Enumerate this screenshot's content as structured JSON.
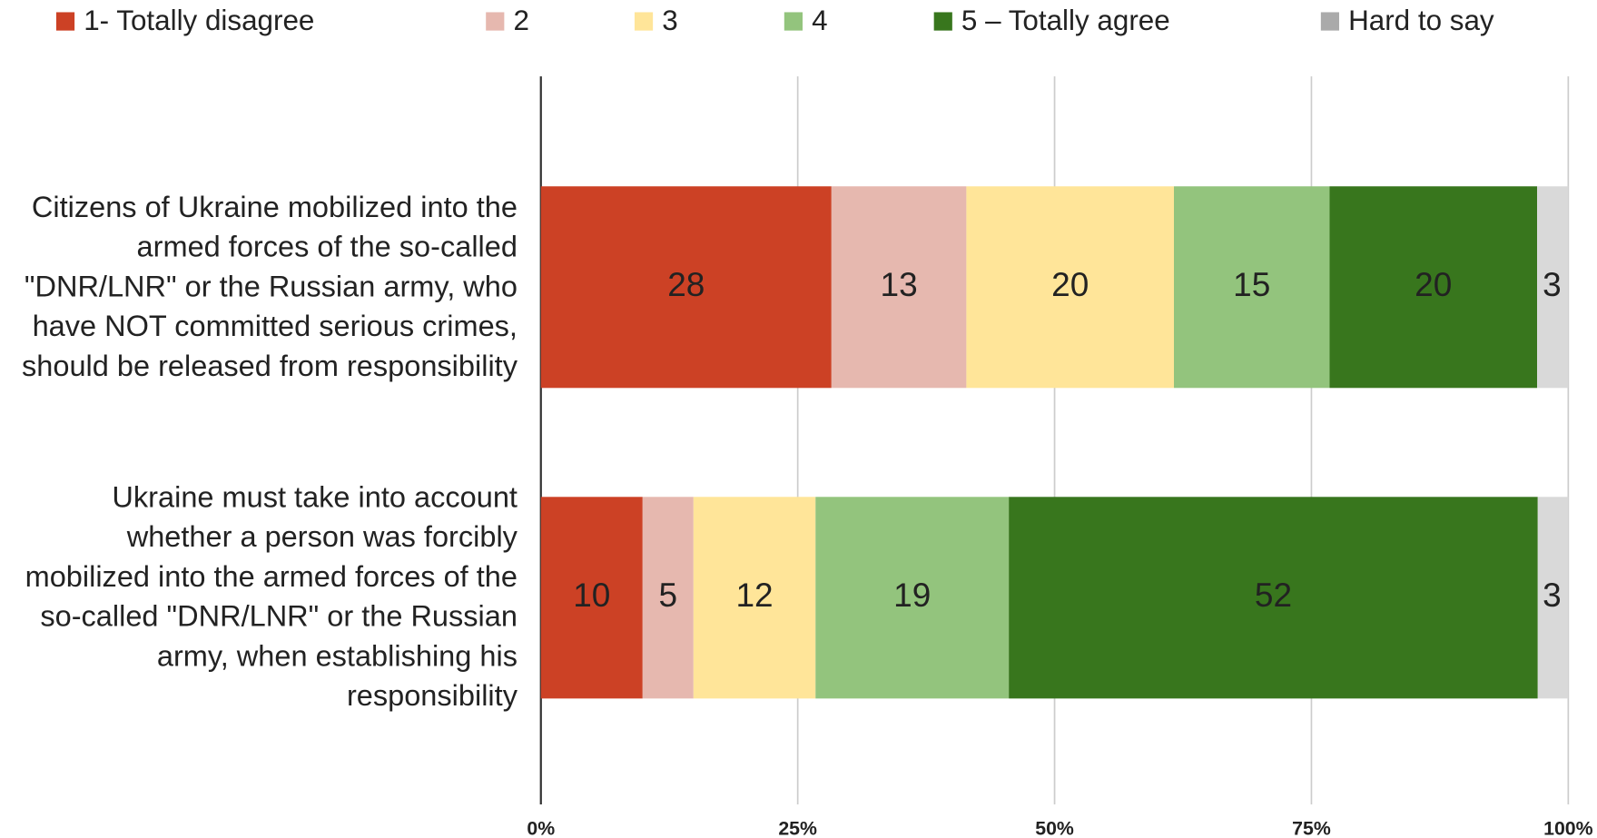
{
  "chart_data": {
    "type": "bar",
    "orientation": "horizontal",
    "stack": "percent",
    "categories": [
      "Citizens of Ukraine mobilized into the armed forces of the so-called \"DNR/LNR\" or the Russian army, who have NOT committed serious crimes, should be released from responsibility",
      "Ukraine must take into account whether a person was forcibly mobilized into the armed forces of the so-called \"DNR/LNR\" or the Russian army, when establishing his responsibility"
    ],
    "series": [
      {
        "name": "1- Totally disagree",
        "color": "#cc4125",
        "values": [
          28,
          10
        ]
      },
      {
        "name": "2",
        "color": "#e6b8af",
        "values": [
          13,
          5
        ]
      },
      {
        "name": "3",
        "color": "#ffe599",
        "values": [
          20,
          12
        ]
      },
      {
        "name": "4",
        "color": "#93c47d",
        "values": [
          15,
          19
        ]
      },
      {
        "name": "5 – Totally agree",
        "color": "#38761d",
        "values": [
          20,
          52
        ]
      },
      {
        "name": "Hard to say",
        "color": "#d9d9d9",
        "values": [
          3,
          3
        ]
      }
    ],
    "xlim": [
      0,
      100
    ],
    "xticks": [
      {
        "value": 0,
        "label": "0%"
      },
      {
        "value": 25,
        "label": "25%"
      },
      {
        "value": 50,
        "label": "50%"
      },
      {
        "value": 75,
        "label": "75%"
      },
      {
        "value": 100,
        "label": "100%"
      }
    ],
    "grid": true,
    "legend": "top"
  }
}
